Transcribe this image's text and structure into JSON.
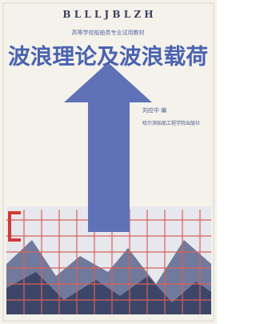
{
  "cover": {
    "series_letters": "B L L L J B L Z H",
    "series_name": "高等学校船舶类专业试用教材",
    "title": "波浪理论及波浪载荷",
    "author": "刘应中 编",
    "publisher": "哈尔滨船舶工程学院出版社"
  }
}
